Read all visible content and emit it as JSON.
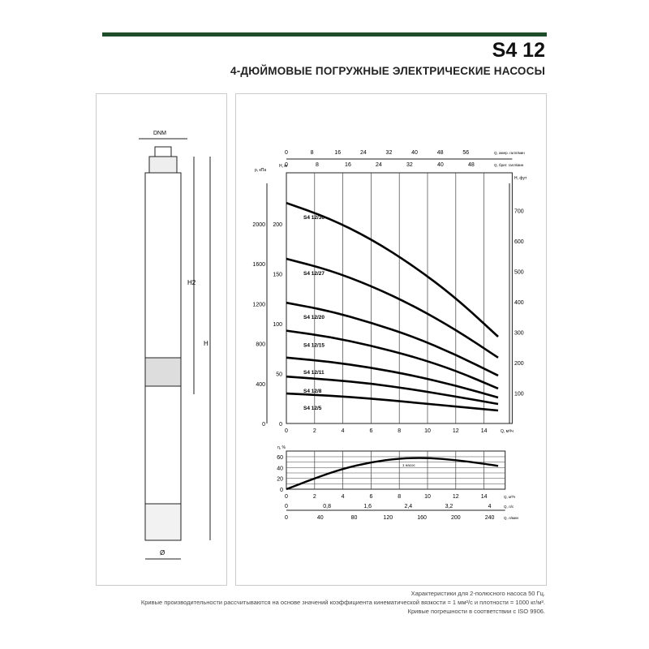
{
  "header": {
    "title": "S4 12",
    "subtitle": "4-ДЮЙМОВЫЕ ПОГРУЖНЫЕ ЭЛЕКТРИЧЕСКИЕ НАСОСЫ"
  },
  "drawing": {
    "labels": {
      "dnm": "DNM",
      "h2": "H2",
      "h": "H",
      "diameter": "Ø"
    }
  },
  "footnotes": [
    "Характеристики для 2-полюсного насоса 50 Гц.",
    "Кривые производительности рассчитываются на основе значений коэффициента кинематической вязкости = 1 мм²/с и плотности = 1000 кг/м³.",
    "Кривые погрешности в соответствии с ISO 9906."
  ],
  "chart_data": [
    {
      "type": "line",
      "title": "",
      "xlabel": "Q, м³/ч",
      "ylabel": "H, м",
      "xlim": [
        0,
        16
      ],
      "ylim": [
        0,
        250
      ],
      "x_ticks": [
        0,
        2,
        4,
        6,
        8,
        10,
        12,
        14
      ],
      "y_ticks": [
        0,
        50,
        100,
        150,
        200
      ],
      "secondary_axes": {
        "left_p": {
          "label": "p, кПа",
          "ticks": [
            0,
            400,
            800,
            1200,
            1600,
            2000
          ]
        },
        "right_h_ft": {
          "label": "H, фут",
          "ticks": [
            100,
            200,
            300,
            400,
            500,
            600,
            700
          ]
        },
        "top_us_gpm": {
          "label": "Q, амер. галл/мин",
          "ticks": [
            0,
            8,
            16,
            24,
            32,
            40,
            48,
            56
          ]
        },
        "top_imp_gpm": {
          "label": "Q, брит. галл/мин",
          "ticks": [
            0,
            8,
            16,
            24,
            32,
            40,
            48
          ]
        }
      },
      "grid": "vertical",
      "series": [
        {
          "name": "S4 12/36",
          "x": [
            0,
            3,
            6,
            9,
            12,
            15
          ],
          "y": [
            221,
            206,
            185,
            158,
            126,
            87
          ]
        },
        {
          "name": "S4 12/27",
          "x": [
            0,
            3,
            6,
            9,
            12,
            15
          ],
          "y": [
            165,
            154,
            138,
            118,
            94,
            66
          ]
        },
        {
          "name": "S4 12/20",
          "x": [
            0,
            3,
            6,
            9,
            12,
            15
          ],
          "y": [
            121,
            113,
            101,
            87,
            69,
            48
          ]
        },
        {
          "name": "S4 12/15",
          "x": [
            0,
            3,
            6,
            9,
            12,
            15
          ],
          "y": [
            93,
            87,
            78,
            67,
            53,
            35
          ]
        },
        {
          "name": "S4 12/11",
          "x": [
            0,
            3,
            6,
            9,
            12,
            15
          ],
          "y": [
            66,
            62,
            56,
            48,
            38,
            26
          ]
        },
        {
          "name": "S4 12/8",
          "x": [
            0,
            3,
            6,
            9,
            12,
            15
          ],
          "y": [
            47,
            44,
            40,
            34,
            27,
            19.5
          ]
        },
        {
          "name": "S4 12/5",
          "x": [
            0,
            3,
            6,
            9,
            12,
            15
          ],
          "y": [
            30,
            28,
            25,
            21,
            17,
            13
          ]
        }
      ]
    },
    {
      "type": "line",
      "title": "",
      "ylabel": "η, %",
      "xlabel": "Q, м³/ч",
      "xlim": [
        0,
        16
      ],
      "ylim": [
        0,
        70
      ],
      "x_ticks": [
        0,
        2,
        4,
        6,
        8,
        10,
        12,
        14
      ],
      "y_ticks": [
        0,
        20,
        40,
        60
      ],
      "grid": "both",
      "secondary_axes": {
        "bottom_l_s": {
          "label": "Q, л/с",
          "ticks": [
            "0",
            "0,8",
            "1,6",
            "2,4",
            "3,2",
            "4"
          ]
        },
        "bottom_l_min": {
          "label": "Q, л/мин",
          "ticks": [
            0,
            40,
            80,
            120,
            160,
            200,
            240
          ]
        }
      },
      "series": [
        {
          "name": "1 насос",
          "x": [
            0,
            2,
            4,
            6,
            8,
            10,
            12,
            14,
            15
          ],
          "y": [
            0,
            20,
            38,
            50,
            57,
            58,
            54,
            47,
            43
          ]
        }
      ]
    }
  ]
}
